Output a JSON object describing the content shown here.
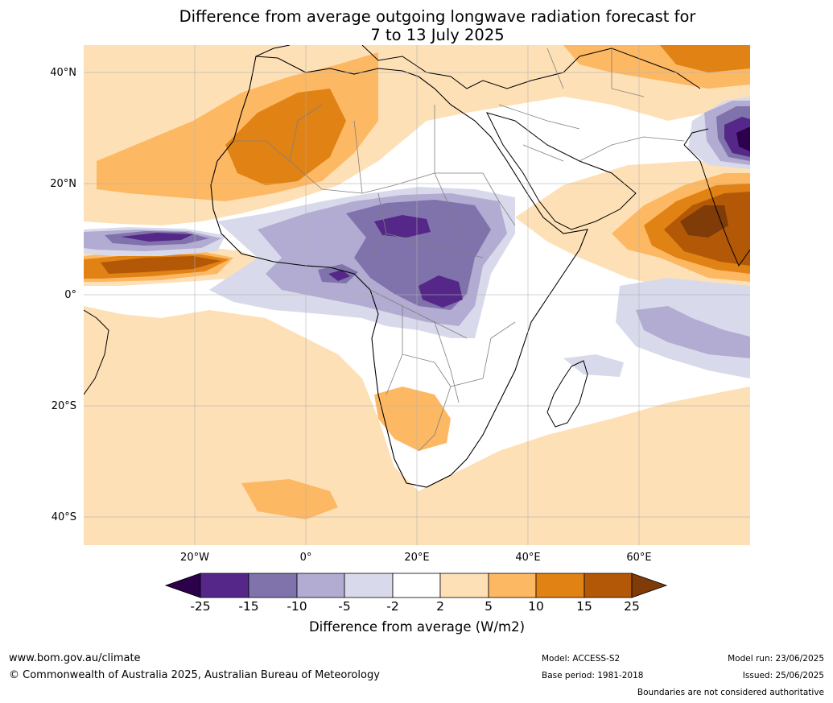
{
  "title_line1": "Difference from average outgoing longwave radiation forecast for",
  "title_line2": "7 to 13 July 2025",
  "axes": {
    "lat_labels": [
      "40°N",
      "20°N",
      "0°",
      "20°S",
      "40°S"
    ],
    "lon_labels": [
      "20°W",
      "0°",
      "20°E",
      "40°E",
      "60°E"
    ]
  },
  "colorbar": {
    "title": "Difference from average (W/m2)",
    "tick_labels": [
      "-25",
      "-15",
      "-10",
      "-5",
      "-2",
      "2",
      "5",
      "10",
      "15",
      "25"
    ],
    "colors": [
      "#2d004b",
      "#542788",
      "#8073ac",
      "#b2abd2",
      "#d8daeb",
      "#ffffff",
      "#fee0b6",
      "#fdb863",
      "#e08214",
      "#b35806",
      "#7f3b08"
    ]
  },
  "footer": {
    "website": "www.bom.gov.au/climate",
    "copyright": "© Commonwealth of Australia 2025, Australian Bureau of Meteorology",
    "model": "Model: ACCESS-S2",
    "base_period": "Base period: 1981-2018",
    "model_run": "Model run: 23/06/2025",
    "issued": "Issued: 25/06/2025",
    "disclaimer": "Boundaries are not considered authoritative"
  }
}
